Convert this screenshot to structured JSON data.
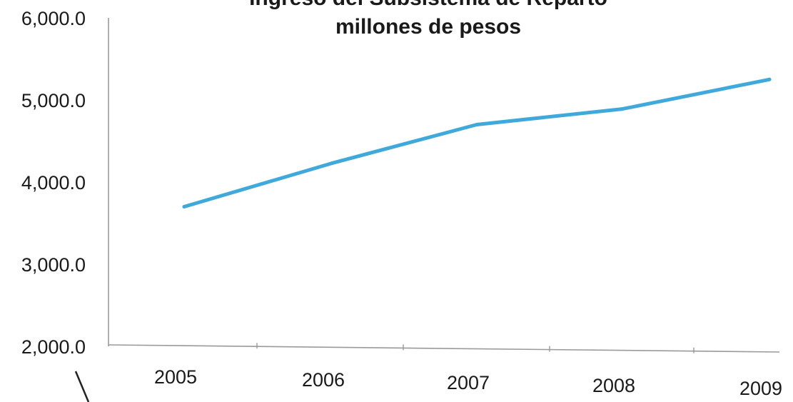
{
  "chart_data": {
    "type": "line",
    "title": [
      "Ingreso del Subsistema de Reparto",
      "millones de pesos"
    ],
    "categories": [
      "2005",
      "2006",
      "2007",
      "2008",
      "2009"
    ],
    "series": [
      {
        "values": [
          3700,
          4230,
          4700,
          4890,
          5250
        ]
      }
    ],
    "yticks": [
      "2,000.0",
      "3,000.0",
      "4,000.0",
      "5,000.0",
      "6,000.0"
    ],
    "ylim": [
      2000,
      6000
    ],
    "grid": false,
    "legend": "none",
    "colors": {
      "line": "#3fa9dc",
      "axis": "#9a9a9a",
      "text": "#1a1a1a"
    }
  }
}
